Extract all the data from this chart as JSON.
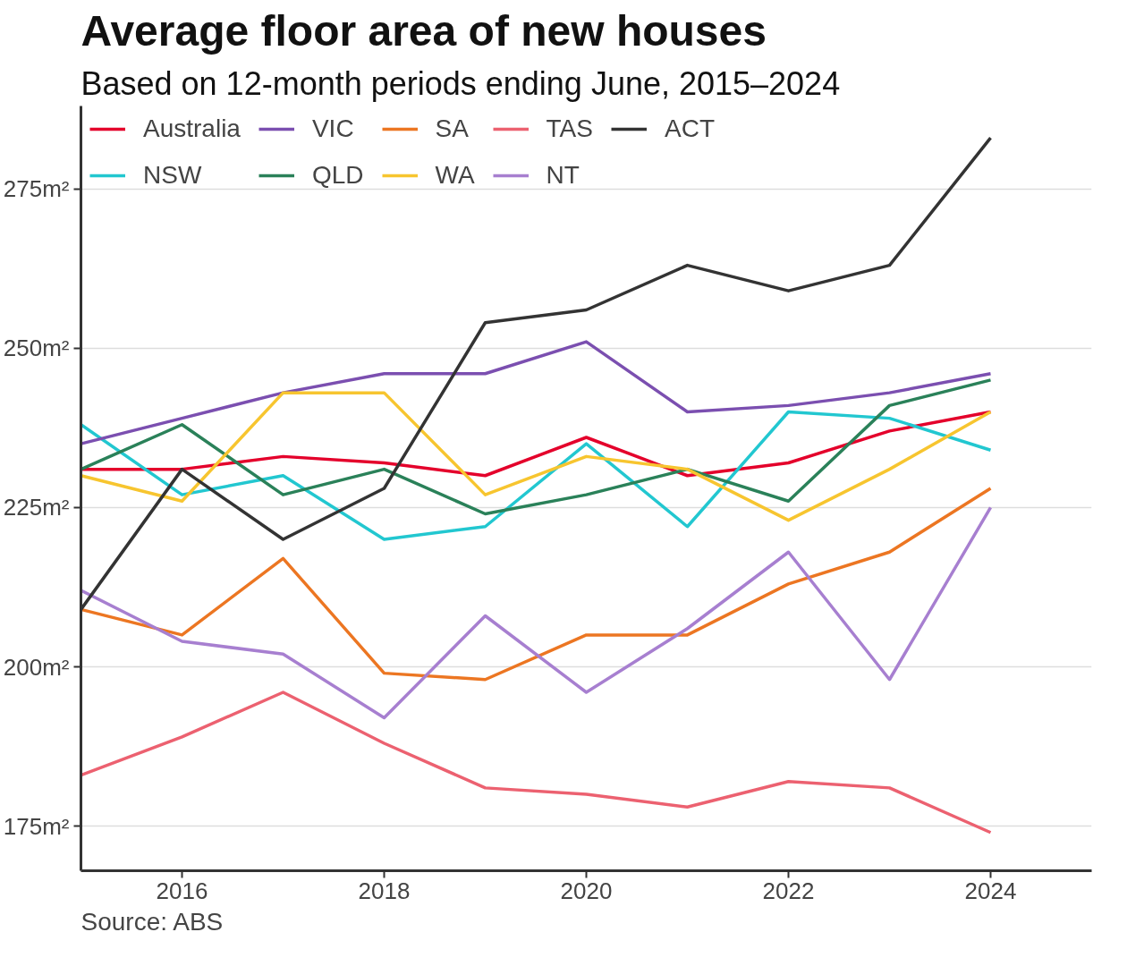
{
  "chart_data": {
    "type": "line",
    "title": "Average floor area of new houses",
    "subtitle": "Based on 12-month periods ending June, 2015–2024",
    "x": [
      2015,
      2016,
      2017,
      2018,
      2019,
      2020,
      2021,
      2022,
      2023,
      2024
    ],
    "series": [
      {
        "name": "Australia",
        "color": "#e4002b",
        "values": [
          231,
          231,
          233,
          232,
          230,
          236,
          230,
          232,
          237,
          240
        ]
      },
      {
        "name": "NSW",
        "color": "#22c7d0",
        "values": [
          238,
          227,
          230,
          220,
          222,
          235,
          222,
          240,
          239,
          234
        ]
      },
      {
        "name": "VIC",
        "color": "#7b4fb0",
        "values": [
          235,
          239,
          243,
          246,
          246,
          251,
          240,
          241,
          243,
          246
        ]
      },
      {
        "name": "QLD",
        "color": "#2a8159",
        "values": [
          231,
          238,
          227,
          231,
          224,
          227,
          231,
          226,
          241,
          245
        ]
      },
      {
        "name": "SA",
        "color": "#ec7622",
        "values": [
          209,
          205,
          217,
          199,
          198,
          205,
          205,
          213,
          218,
          228
        ]
      },
      {
        "name": "WA",
        "color": "#f7c52f",
        "values": [
          230,
          226,
          243,
          243,
          227,
          233,
          231,
          223,
          231,
          240
        ]
      },
      {
        "name": "TAS",
        "color": "#ec6170",
        "values": [
          183,
          189,
          196,
          188,
          181,
          180,
          178,
          182,
          181,
          174
        ]
      },
      {
        "name": "NT",
        "color": "#a77fd0",
        "values": [
          212,
          204,
          202,
          192,
          208,
          196,
          206,
          218,
          198,
          225
        ]
      },
      {
        "name": "ACT",
        "color": "#333333",
        "values": [
          209,
          231,
          220,
          228,
          254,
          256,
          263,
          259,
          263,
          283
        ]
      }
    ],
    "xlim": [
      2015,
      2025
    ],
    "xticks": [
      2016,
      2018,
      2020,
      2022,
      2024
    ],
    "ylim": [
      168,
      288
    ],
    "yticks": [
      {
        "value": 175,
        "label": "175m²"
      },
      {
        "value": 200,
        "label": "200m²"
      },
      {
        "value": 225,
        "label": "225m²"
      },
      {
        "value": 250,
        "label": "250m²"
      },
      {
        "value": 275,
        "label": "275m²"
      }
    ],
    "grid": "y",
    "legend": "top",
    "marker": "none",
    "line_style": "solid",
    "annotations": [
      "Source: ABS"
    ]
  }
}
